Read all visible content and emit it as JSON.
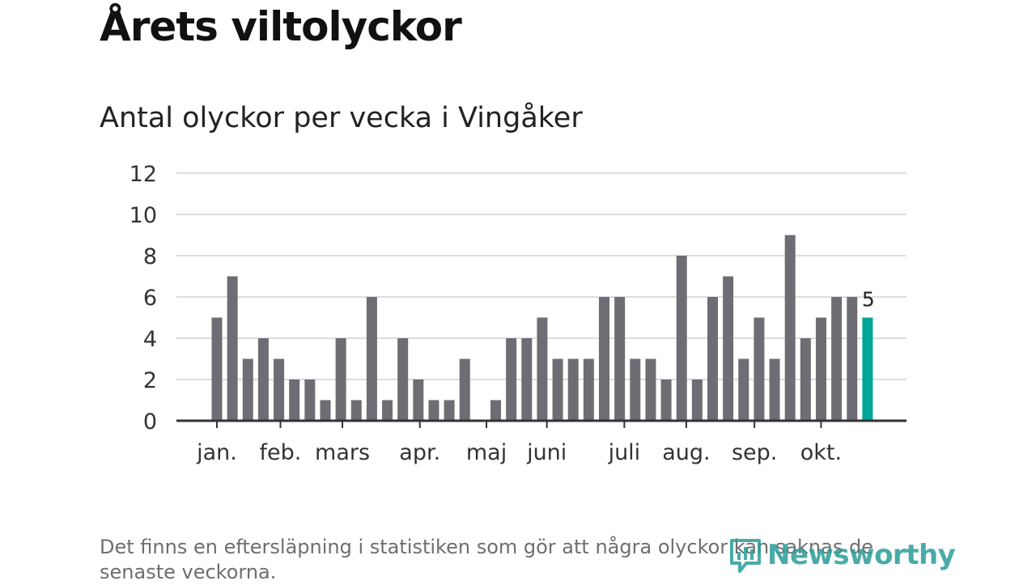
{
  "title": "Årets viltolyckor",
  "subtitle": "Antal olyckor per vecka i Vingåker",
  "note": "Det finns en eftersläpning i statistiken som gör att några olyckor kan saknas de senaste veckorna.",
  "logo": {
    "text": "Newsworthy",
    "icon": "bar-chart-speech-bubble-icon"
  },
  "colors": {
    "bar": "#6e6d73",
    "highlight": "#00a597",
    "grid": "#dddddd",
    "axis": "#333333",
    "logo": "#2a9d99"
  },
  "chart_data": {
    "type": "bar",
    "title": "Antal olyckor per vecka i Vingåker",
    "xlabel": "",
    "ylabel": "",
    "ylim": [
      0,
      12
    ],
    "yticks": [
      0,
      2,
      4,
      6,
      8,
      10,
      12
    ],
    "weeks": [
      1,
      2,
      3,
      4,
      5,
      6,
      7,
      8,
      9,
      10,
      11,
      12,
      13,
      14,
      15,
      16,
      17,
      18,
      19,
      20,
      21,
      22,
      23,
      24,
      25,
      26,
      27,
      28,
      29,
      30,
      31,
      32,
      33,
      34,
      35,
      36,
      37,
      38,
      39,
      40,
      41,
      42,
      43
    ],
    "values": [
      5,
      7,
      3,
      4,
      3,
      2,
      2,
      1,
      4,
      1,
      6,
      1,
      4,
      2,
      1,
      1,
      3,
      0,
      1,
      4,
      4,
      5,
      3,
      3,
      3,
      6,
      6,
      3,
      3,
      2,
      8,
      2,
      6,
      7,
      3,
      5,
      3,
      9,
      4,
      5,
      6,
      6,
      5
    ],
    "highlight_last": true,
    "last_value_label": "5",
    "month_labels": [
      "jan.",
      "feb.",
      "mars",
      "apr.",
      "maj",
      "juni",
      "juli",
      "aug.",
      "sep.",
      "okt."
    ],
    "grid": true,
    "legend": "none"
  }
}
